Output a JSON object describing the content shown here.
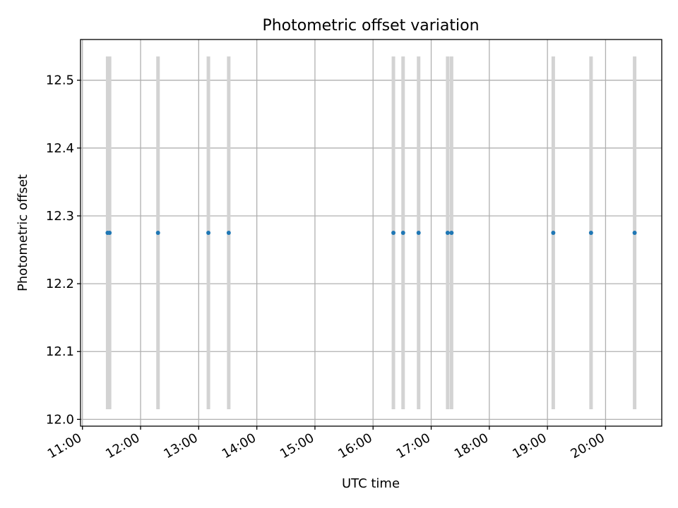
{
  "chart_data": {
    "type": "scatter",
    "title": "Photometric offset variation",
    "xlabel": "UTC time",
    "ylabel": "Photometric offset",
    "grid": true,
    "xlim": [
      "10:58",
      "20:58"
    ],
    "ylim": [
      11.99,
      12.56
    ],
    "x_ticks": [
      "11:00",
      "12:00",
      "13:00",
      "14:00",
      "15:00",
      "16:00",
      "17:00",
      "18:00",
      "19:00",
      "20:00"
    ],
    "y_ticks": [
      "12.0",
      "12.1",
      "12.2",
      "12.3",
      "12.4",
      "12.5"
    ],
    "points": [
      {
        "x": "11:26",
        "y": 12.275,
        "err": [
          12.015,
          12.535
        ]
      },
      {
        "x": "11:28",
        "y": 12.275,
        "err": [
          12.015,
          12.535
        ]
      },
      {
        "x": "12:18",
        "y": 12.275,
        "err": [
          12.015,
          12.535
        ]
      },
      {
        "x": "13:10",
        "y": 12.275,
        "err": [
          12.015,
          12.535
        ]
      },
      {
        "x": "13:31",
        "y": 12.275,
        "err": [
          12.015,
          12.535
        ]
      },
      {
        "x": "16:21",
        "y": 12.275,
        "err": [
          12.015,
          12.535
        ]
      },
      {
        "x": "16:31",
        "y": 12.275,
        "err": [
          12.015,
          12.535
        ]
      },
      {
        "x": "16:47",
        "y": 12.275,
        "err": [
          12.015,
          12.535
        ]
      },
      {
        "x": "17:17",
        "y": 12.275,
        "err": [
          12.015,
          12.535
        ]
      },
      {
        "x": "17:21",
        "y": 12.275,
        "err": [
          12.015,
          12.535
        ]
      },
      {
        "x": "19:06",
        "y": 12.275,
        "err": [
          12.015,
          12.535
        ]
      },
      {
        "x": "19:45",
        "y": 12.275,
        "err": [
          12.015,
          12.535
        ]
      },
      {
        "x": "20:30",
        "y": 12.275,
        "err": [
          12.015,
          12.535
        ]
      }
    ],
    "colors": {
      "point": "#1f77b4",
      "errorbar": "#d3d3d3",
      "grid": "#b0b0b0"
    }
  }
}
